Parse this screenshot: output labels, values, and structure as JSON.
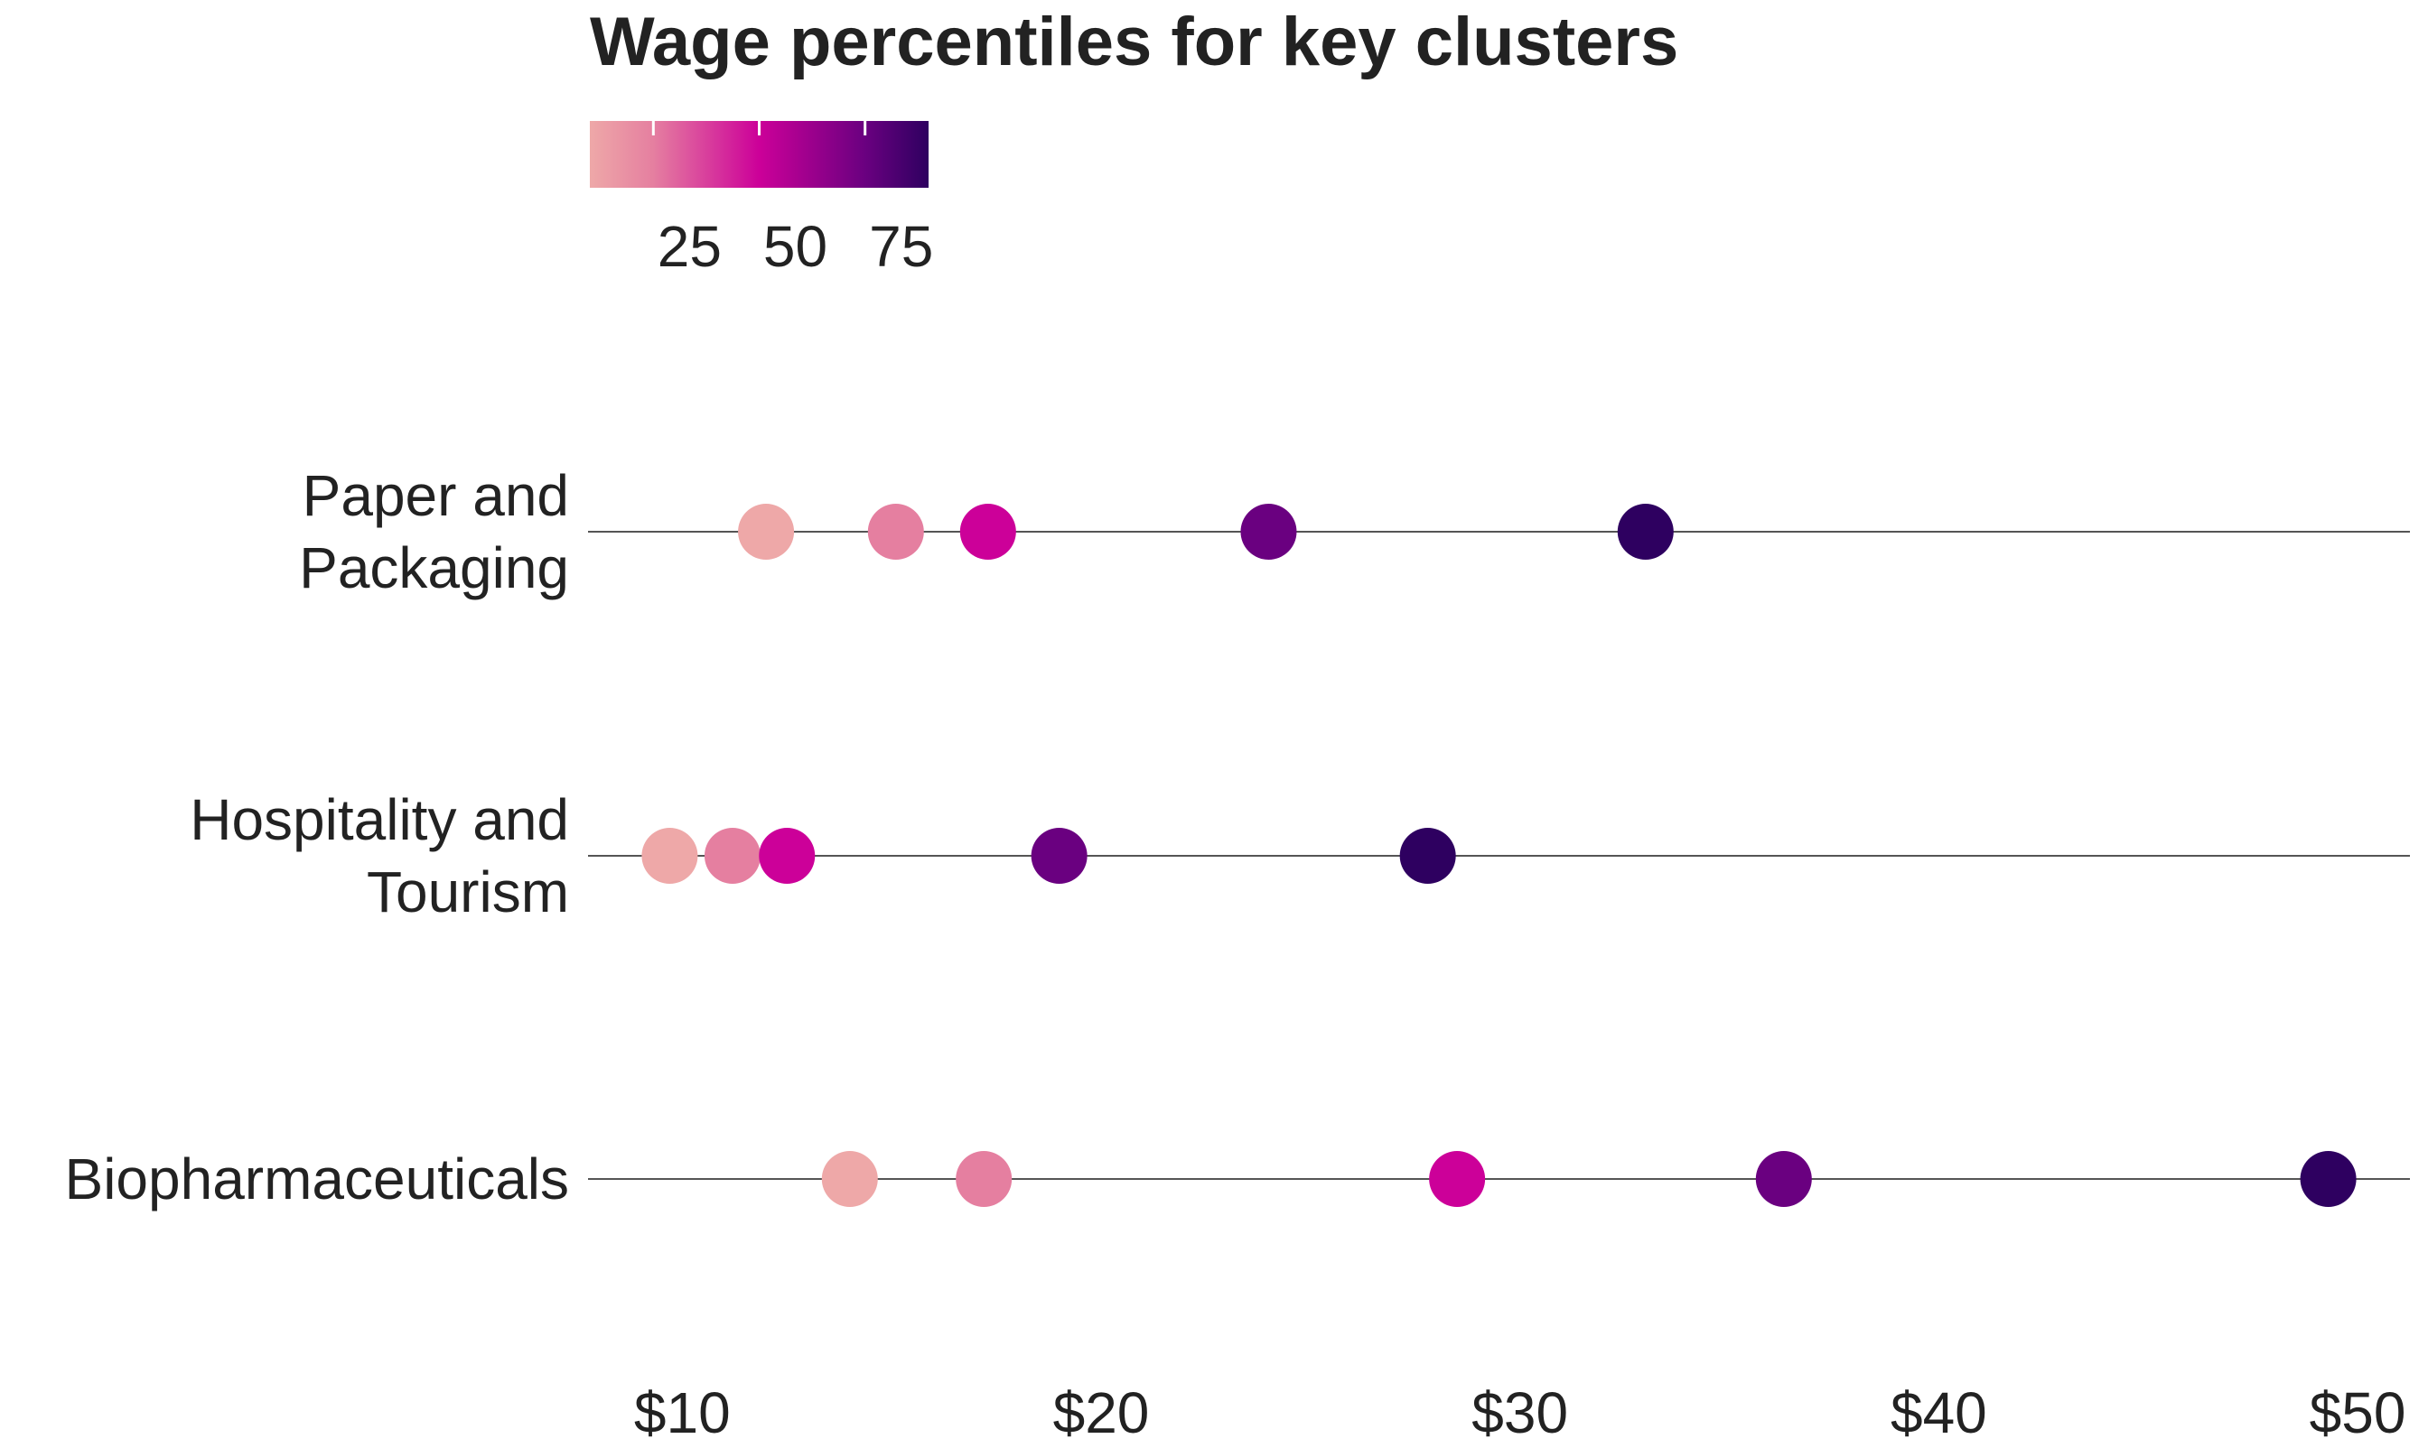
{
  "chart_data": {
    "type": "dot",
    "title": "Wage percentiles for key clusters",
    "categories": [
      "Paper and\nPackaging",
      "Hospitality and\nTourism",
      "Biopharmaceuticals"
    ],
    "series": [
      {
        "color": "#eea8a8",
        "values": [
          12.0,
          9.7,
          14.0
        ]
      },
      {
        "color": "#e57fa0",
        "values": [
          15.1,
          11.2,
          17.2
        ]
      },
      {
        "color": "#cc0099",
        "values": [
          17.3,
          12.5,
          28.5
        ]
      },
      {
        "color": "#6a0080",
        "values": [
          24.0,
          19.0,
          36.3
        ]
      },
      {
        "color": "#2e0060",
        "values": [
          33.0,
          27.8,
          49.3
        ]
      }
    ],
    "xlim": [
      7.75,
      51.25
    ],
    "xticks": [
      {
        "value": 10,
        "label": "$10"
      },
      {
        "value": 20,
        "label": "$20"
      },
      {
        "value": 30,
        "label": "$30"
      },
      {
        "value": 40,
        "label": "$40"
      },
      {
        "value": 50,
        "label": "$50"
      }
    ],
    "colorbar": {
      "lim": [
        10,
        90
      ],
      "ticks": [
        25,
        50,
        75
      ],
      "stops": [
        {
          "value": 10,
          "color": "#eea8a8"
        },
        {
          "value": 25,
          "color": "#e57fa0"
        },
        {
          "value": 50,
          "color": "#cc0099"
        },
        {
          "value": 75,
          "color": "#6a0080"
        },
        {
          "value": 90,
          "color": "#2e0060"
        }
      ]
    }
  }
}
